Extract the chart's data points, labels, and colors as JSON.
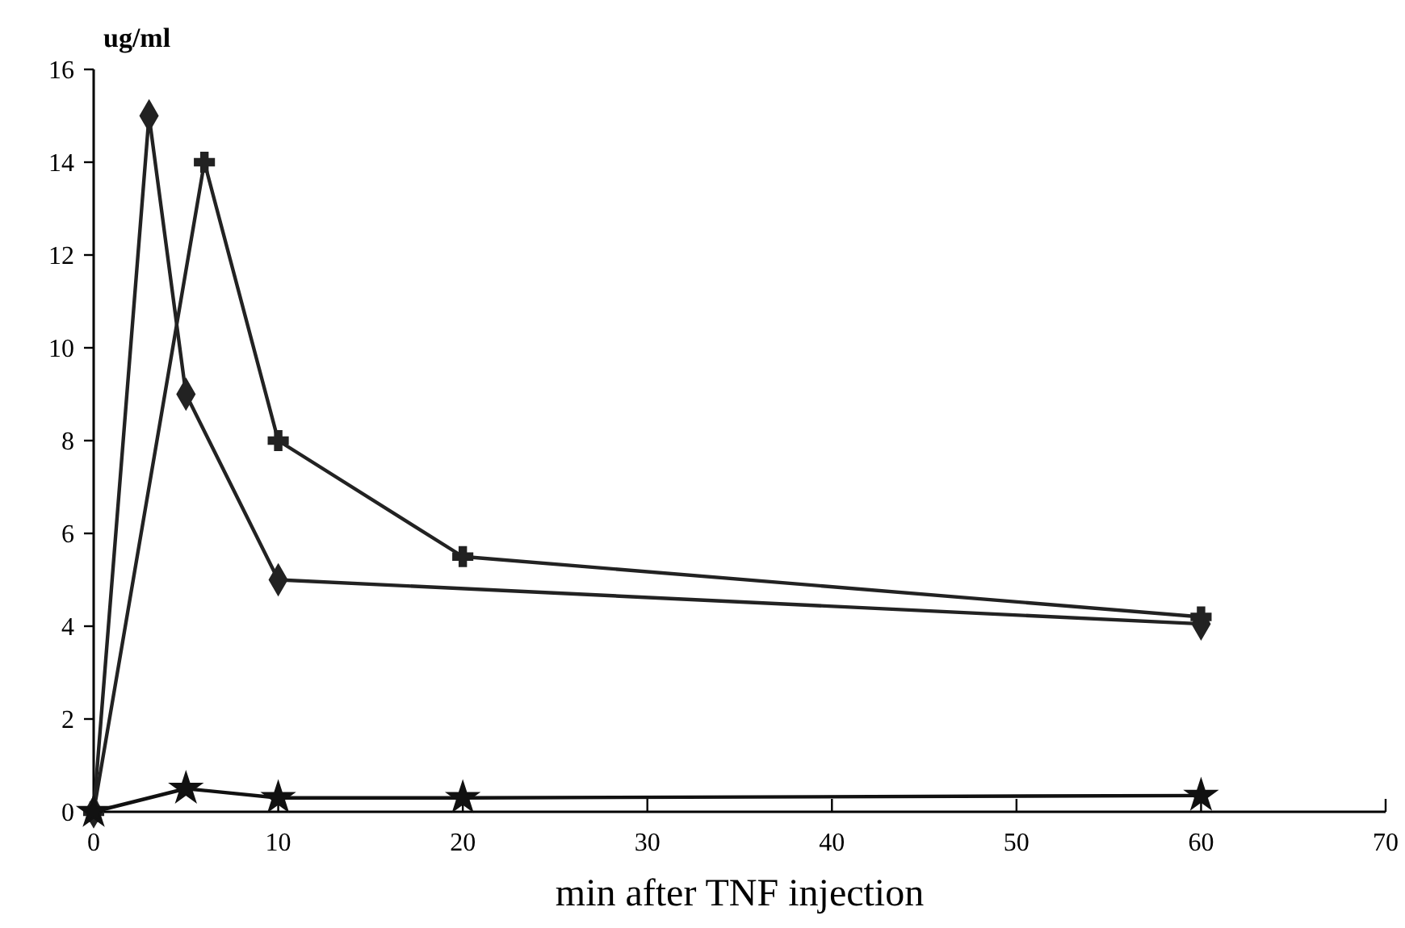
{
  "chart_data": {
    "type": "line",
    "xlabel": "min after TNF injection",
    "ylabel": "ug/ml",
    "xlim": [
      0,
      70
    ],
    "xticks": [
      0,
      10,
      20,
      30,
      40,
      50,
      60,
      70
    ],
    "ylim": [
      0,
      16
    ],
    "yticks": [
      0,
      2,
      4,
      6,
      8,
      10,
      12,
      14,
      16
    ],
    "grid": false,
    "series": [
      {
        "color": "#222222",
        "marker": "diamond",
        "x": [
          0,
          3,
          5,
          10,
          60
        ],
        "values": [
          0,
          15,
          9,
          5,
          4.05
        ]
      },
      {
        "color": "#222222",
        "marker": "cross",
        "x": [
          0,
          6,
          10,
          20,
          60
        ],
        "values": [
          0,
          14,
          8,
          5.5,
          4.2
        ]
      },
      {
        "color": "#111111",
        "marker": "star",
        "x": [
          0,
          5,
          10,
          20,
          60
        ],
        "values": [
          0,
          0.5,
          0.3,
          0.3,
          0.35
        ]
      }
    ]
  }
}
